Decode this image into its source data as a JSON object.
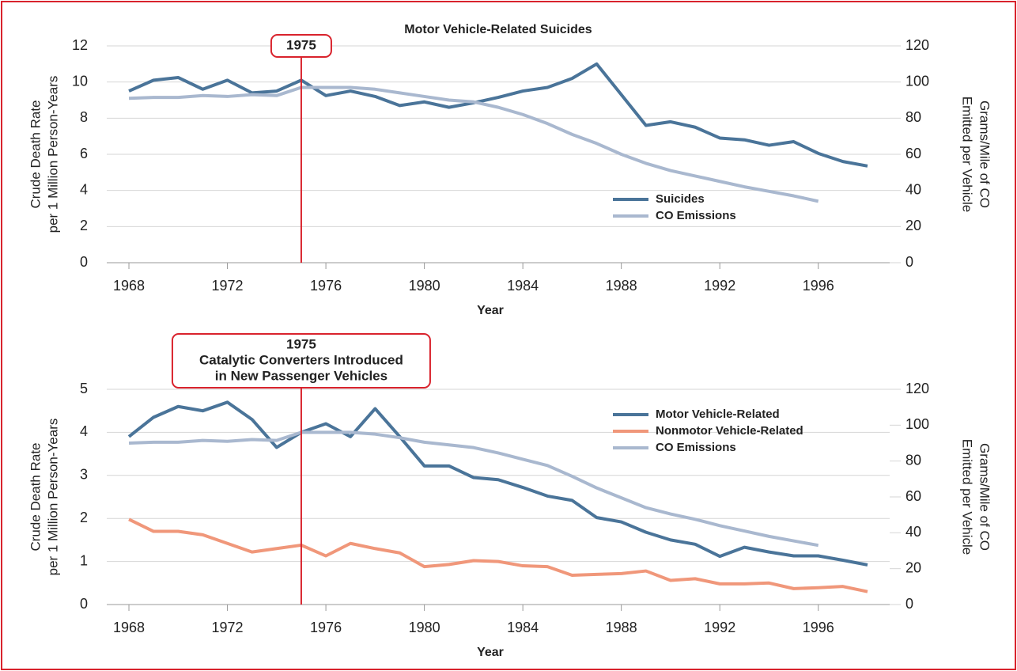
{
  "chart_data": [
    {
      "type": "line",
      "title": "Motor Vehicle-Related Suicides",
      "x": [
        1968,
        1969,
        1970,
        1971,
        1972,
        1973,
        1974,
        1975,
        1976,
        1977,
        1978,
        1979,
        1980,
        1981,
        1982,
        1983,
        1984,
        1985,
        1986,
        1987,
        1988,
        1989,
        1990,
        1991,
        1992,
        1993,
        1994,
        1995,
        1996,
        1997,
        1998
      ],
      "xlim": [
        1967.1,
        1998.9
      ],
      "xticks": [
        1968,
        1972,
        1976,
        1980,
        1984,
        1988,
        1992,
        1996
      ],
      "xlabel": "Year",
      "ylabel": [
        "Crude Death Rate",
        "per 1 Million Person-Years"
      ],
      "y2label": [
        "Grams/Mile of CO",
        "Emitted per Vehicle"
      ],
      "ylim": [
        0,
        12
      ],
      "yticks": [
        0,
        2,
        4,
        6,
        8,
        10,
        12
      ],
      "y2lim": [
        0,
        120
      ],
      "y2ticks": [
        0,
        20,
        40,
        60,
        80,
        100,
        120
      ],
      "grid": true,
      "legend": "center right",
      "annotation": {
        "x": 1975,
        "lines": [
          "1975"
        ]
      },
      "series": [
        {
          "name": "Suicides",
          "color": "#4a7499",
          "values": [
            9.5,
            10.1,
            10.25,
            9.6,
            10.1,
            9.4,
            9.5,
            10.1,
            9.25,
            9.5,
            9.2,
            8.7,
            8.9,
            8.6,
            8.85,
            9.15,
            9.5,
            9.7,
            10.2,
            11.0,
            9.3,
            7.6,
            7.8,
            7.5,
            6.9,
            6.8,
            6.5,
            6.7,
            6.05,
            5.6,
            5.35
          ]
        },
        {
          "name": "CO Emissions",
          "color": "#a9b8cf",
          "axis": "y2",
          "values": [
            91,
            91.5,
            91.5,
            92.5,
            92,
            93,
            92.5,
            97,
            97,
            97,
            96,
            94,
            92,
            90,
            89,
            86,
            82,
            77,
            71,
            66,
            60,
            55,
            51,
            48,
            45,
            42,
            39.5,
            37,
            34,
            null,
            null
          ]
        }
      ]
    },
    {
      "type": "line",
      "x": [
        1968,
        1969,
        1970,
        1971,
        1972,
        1973,
        1974,
        1975,
        1976,
        1977,
        1978,
        1979,
        1980,
        1981,
        1982,
        1983,
        1984,
        1985,
        1986,
        1987,
        1988,
        1989,
        1990,
        1991,
        1992,
        1993,
        1994,
        1995,
        1996,
        1997,
        1998
      ],
      "xlim": [
        1967.1,
        1998.9
      ],
      "xticks": [
        1968,
        1972,
        1976,
        1980,
        1984,
        1988,
        1992,
        1996
      ],
      "xlabel": "Year",
      "ylabel": [
        "Crude Death Rate",
        "per 1 Million Person-Years"
      ],
      "y2label": [
        "Grams/Mile of CO",
        "Emitted per Vehicle"
      ],
      "ylim": [
        0,
        5
      ],
      "yticks": [
        0,
        1,
        2,
        3,
        4,
        5
      ],
      "y2lim": [
        0,
        120
      ],
      "y2ticks": [
        0,
        20,
        40,
        60,
        80,
        100,
        120
      ],
      "grid": true,
      "legend": "upper right",
      "annotation": {
        "x": 1975,
        "lines": [
          "1975",
          "Catalytic Converters Introduced",
          "in New Passenger Vehicles"
        ]
      },
      "series": [
        {
          "name": "Motor Vehicle-Related",
          "color": "#4a7499",
          "values": [
            3.9,
            4.35,
            4.6,
            4.5,
            4.7,
            4.3,
            3.65,
            4.0,
            4.2,
            3.9,
            4.55,
            3.9,
            3.22,
            3.22,
            2.95,
            2.9,
            2.72,
            2.52,
            2.42,
            2.02,
            1.92,
            1.68,
            1.5,
            1.4,
            1.12,
            1.33,
            1.22,
            1.13,
            1.13,
            1.03,
            0.92
          ]
        },
        {
          "name": "Nonmotor Vehicle-Related",
          "color": "#f0977a",
          "values": [
            1.98,
            1.7,
            1.7,
            1.62,
            1.42,
            1.22,
            1.3,
            1.38,
            1.13,
            1.42,
            1.3,
            1.2,
            0.88,
            0.93,
            1.02,
            1.0,
            0.9,
            0.88,
            0.68,
            0.7,
            0.72,
            0.78,
            0.56,
            0.6,
            0.48,
            0.48,
            0.5,
            0.37,
            0.39,
            0.42,
            0.3
          ]
        },
        {
          "name": "CO Emissions",
          "color": "#a9b8cf",
          "axis": "y2",
          "values": [
            90,
            90.5,
            90.5,
            91.5,
            91,
            92,
            91.5,
            96,
            96,
            96,
            95,
            93,
            90.5,
            89,
            87.5,
            84.5,
            81,
            77.5,
            71.5,
            65,
            59.5,
            54,
            50.5,
            47.5,
            44,
            41,
            38,
            35.5,
            33,
            null,
            null
          ]
        }
      ]
    }
  ]
}
